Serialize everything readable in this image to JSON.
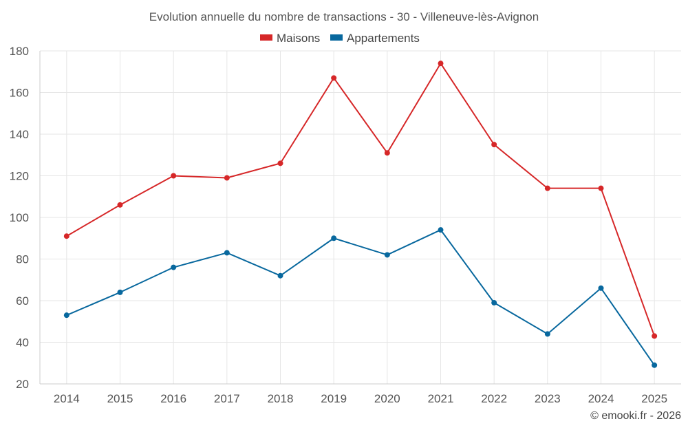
{
  "chart_data": {
    "type": "line",
    "title": "Evolution annuelle du nombre de transactions - 30 - Villeneuve-lès-Avignon",
    "categories": [
      "2014",
      "2015",
      "2016",
      "2017",
      "2018",
      "2019",
      "2020",
      "2021",
      "2022",
      "2023",
      "2024",
      "2025"
    ],
    "series": [
      {
        "name": "Maisons",
        "color": "#d62728",
        "values": [
          91,
          106,
          120,
          119,
          126,
          167,
          131,
          174,
          135,
          114,
          114,
          43
        ]
      },
      {
        "name": "Appartements",
        "color": "#08689e",
        "values": [
          53,
          64,
          76,
          83,
          72,
          90,
          82,
          94,
          59,
          44,
          66,
          29
        ]
      }
    ],
    "ylim": [
      20,
      180
    ],
    "yticks": [
      20,
      40,
      60,
      80,
      100,
      120,
      140,
      160,
      180
    ],
    "legend": "top-center",
    "grid": true,
    "xlabel": "",
    "ylabel": ""
  },
  "credit": "© emooki.fr - 2026"
}
